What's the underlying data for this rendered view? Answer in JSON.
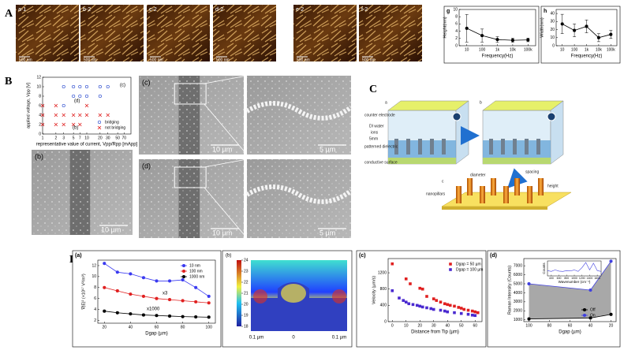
{
  "figure": {
    "A": {
      "label": "A",
      "images": [
        {
          "label": "a-1",
          "scale": "500 nm"
        },
        {
          "label": "b-2",
          "scale": "500 nm"
        },
        {
          "label": "c-2",
          "scale": "500 nm"
        },
        {
          "label": "d-2",
          "scale": "500 nm"
        },
        {
          "label": "e-2",
          "scale": "500 nm"
        },
        {
          "label": "f-2",
          "scale": "500 nm"
        }
      ]
    },
    "B": {
      "label": "B",
      "images": [
        {
          "label": "(b)",
          "scale": "10 µm"
        },
        {
          "label": "(c)",
          "scale": "10 µm"
        },
        {
          "scale": "5 µm"
        },
        {
          "label": "(d)",
          "scale": "10 µm"
        },
        {
          "scale": "5 µm"
        }
      ]
    },
    "C": {
      "label": "C",
      "steps": [
        "a",
        "b",
        "c"
      ],
      "texts": [
        "counter electrode",
        "DI water",
        "ions",
        "patterned dielectric",
        "conductive surface",
        "5mm"
      ],
      "pillar_texts": [
        "diameter",
        "spacing",
        "height",
        "nanopillars"
      ]
    },
    "D": {
      "label": "D",
      "field": {
        "label": "(b)",
        "colorbar": [
          18,
          19,
          20,
          21,
          22,
          23,
          24
        ],
        "xlabels": [
          "0.1 µm",
          "0",
          "0.1 µm"
        ]
      }
    }
  },
  "chart_data": [
    {
      "type": "line",
      "label": "g",
      "categories": [
        "10",
        "100",
        "1k",
        "10k",
        "100k"
      ],
      "series": [
        {
          "color": "#000000",
          "values": [
            4.8,
            2.8,
            1.7,
            1.5,
            1.6
          ],
          "errors": [
            3.8,
            1.8,
            0.8,
            0.6,
            0.5
          ]
        }
      ],
      "ylim": [
        0,
        10
      ],
      "yticks": [
        0,
        2,
        4,
        6,
        8,
        10
      ],
      "xlabel": "Frequency(Hz)",
      "ylabel": "Height(nm)"
    },
    {
      "type": "line",
      "label": "h",
      "categories": [
        "10",
        "100",
        "1k",
        "10k",
        "100k"
      ],
      "series": [
        {
          "color": "#000000",
          "values": [
            27,
            19,
            24,
            10,
            14
          ],
          "errors": [
            12,
            8,
            8,
            5,
            5
          ]
        }
      ],
      "ylim": [
        0,
        45
      ],
      "yticks": [
        0,
        10,
        20,
        30,
        40
      ],
      "xlabel": "Frequency(Hz)",
      "ylabel": "Width(nm)"
    },
    {
      "type": "scatter",
      "xlog": true,
      "xlim": [
        1,
        100
      ],
      "xticks": [
        1,
        2,
        3,
        5,
        7,
        10,
        20,
        30,
        50,
        70
      ],
      "ylim": [
        0,
        12
      ],
      "yticks": [
        0,
        2,
        4,
        6,
        8,
        10,
        12
      ],
      "xlabel": "representative value of current, Vpp/Rpp [mApp]",
      "ylabel": "applied voltage, Vpp [V]",
      "legend": "lower right",
      "annotations": [
        "(c)",
        "(d)",
        "(b)"
      ],
      "series": [
        {
          "name": "bridging",
          "color": "#3050d0",
          "marker": "o",
          "x": [
            3,
            5,
            7,
            10,
            20,
            30,
            5,
            7,
            10,
            20,
            3
          ],
          "values": [
            10,
            10,
            10,
            10,
            10,
            10,
            8,
            8,
            8,
            8,
            6
          ]
        },
        {
          "name": "not bridging",
          "color": "#e02020",
          "marker": "x",
          "x": [
            1,
            2,
            3,
            5,
            7,
            10,
            20,
            30,
            1,
            2,
            3,
            5,
            7,
            1,
            2,
            10
          ],
          "values": [
            4,
            4,
            4,
            4,
            4,
            4,
            4,
            4,
            2,
            2,
            2,
            2,
            2,
            6,
            6,
            6
          ]
        }
      ]
    },
    {
      "type": "line",
      "label": "(a)",
      "x": [
        20,
        30,
        40,
        50,
        60,
        70,
        80,
        90,
        100
      ],
      "xlim": [
        15,
        105
      ],
      "xticks": [
        20,
        40,
        60,
        80,
        100
      ],
      "ylim": [
        1.5,
        13
      ],
      "yticks": [
        2,
        4,
        6,
        8,
        10,
        12
      ],
      "xlabel": "Dgap (µm)",
      "ylabel": "∇|E|² (×10¹⁷ V²/m³)",
      "legend": "upper right",
      "annotations": [
        "x3",
        "x1000"
      ],
      "series": [
        {
          "name": "10 nm",
          "color": "#3a3af0",
          "marker": "o",
          "values": [
            12.4,
            10.8,
            10.5,
            9.8,
            9.2,
            9.2,
            9.4,
            8.0,
            6.4
          ]
        },
        {
          "name": "100 nm",
          "color": "#e02020",
          "marker": "o",
          "values": [
            8.0,
            7.4,
            6.8,
            6.4,
            6.0,
            5.8,
            5.6,
            5.4,
            5.2
          ]
        },
        {
          "name": "1000 nm",
          "color": "#000000",
          "marker": "o",
          "values": [
            3.7,
            3.4,
            3.2,
            3.0,
            2.9,
            2.8,
            2.7,
            2.65,
            2.6
          ]
        }
      ]
    },
    {
      "type": "scatter",
      "label": "(c)",
      "xlim": [
        -3,
        65
      ],
      "xticks": [
        0,
        10,
        20,
        30,
        40,
        50,
        60
      ],
      "ylim": [
        0,
        1550
      ],
      "yticks": [
        0,
        400,
        800,
        1200
      ],
      "xlabel": "Distance from Tip (µm)",
      "ylabel": "Velocity (µm/s)",
      "legend": "upper right",
      "series": [
        {
          "name": "Dgap = 50 µm",
          "color": "#e02020",
          "marker": "s",
          "x": [
            0,
            10,
            13,
            20,
            22,
            25,
            30,
            32,
            35,
            38,
            40,
            42,
            45,
            48,
            50,
            52,
            55,
            58,
            60,
            62
          ],
          "values": [
            1420,
            1050,
            930,
            820,
            800,
            620,
            560,
            520,
            480,
            440,
            420,
            400,
            380,
            350,
            330,
            300,
            280,
            260,
            240,
            220
          ]
        },
        {
          "name": "Dgap = 100 µm",
          "color": "#4a2ad0",
          "marker": "s",
          "x": [
            0,
            5,
            8,
            10,
            12,
            15,
            18,
            20,
            22,
            25,
            28,
            30,
            35,
            38,
            40,
            45,
            50,
            55,
            58,
            60
          ],
          "values": [
            760,
            580,
            520,
            480,
            440,
            420,
            400,
            380,
            360,
            340,
            320,
            300,
            280,
            260,
            240,
            220,
            200,
            180,
            160,
            150
          ]
        }
      ]
    },
    {
      "type": "area",
      "label": "(d)",
      "x": [
        100,
        40,
        20
      ],
      "xlim": [
        105,
        15
      ],
      "xticks": [
        100,
        80,
        60,
        40,
        20
      ],
      "ylim": [
        800,
        7800
      ],
      "yticks": [
        1000,
        2000,
        3000,
        4000,
        5000,
        6000,
        7000
      ],
      "xlabel": "Dgap (µm)",
      "ylabel": "Raman Intensity (Counts)",
      "legend": "lower right",
      "series": [
        {
          "name": "Off",
          "color": "#000000",
          "marker": "o",
          "values": [
            1100,
            1200,
            1600
          ]
        },
        {
          "name": "On",
          "color": "#4040e0",
          "marker": "o",
          "values": [
            5000,
            4300,
            7500
          ]
        }
      ],
      "inset": {
        "xlabel": "Wavenumber (cm⁻¹)",
        "ylabel": "Counts",
        "xlim": [
          300,
          1700
        ],
        "xticks": [
          400,
          600,
          800,
          1000,
          1200,
          1400,
          1600
        ],
        "ylim": [
          0,
          1
        ],
        "x": [
          300,
          400,
          500,
          600,
          700,
          800,
          900,
          1000,
          1100,
          1200,
          1300,
          1400,
          1500,
          1600,
          1700
        ],
        "values": [
          0.35,
          0.3,
          0.4,
          0.32,
          0.3,
          0.35,
          0.33,
          0.4,
          0.3,
          0.55,
          0.9,
          0.4,
          0.85,
          0.35,
          0.3
        ],
        "color": "#4040e0"
      }
    }
  ]
}
